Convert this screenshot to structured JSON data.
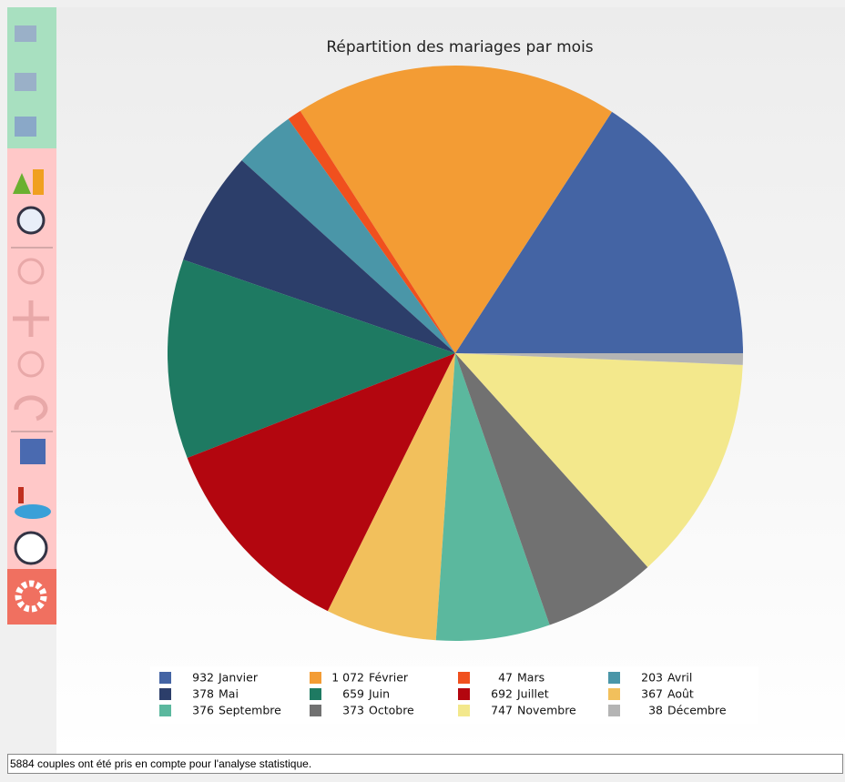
{
  "chart_data": {
    "type": "pie",
    "title": "Répartition des mariages par mois",
    "categories": [
      "Janvier",
      "Février",
      "Mars",
      "Avril",
      "Mai",
      "Juin",
      "Juillet",
      "Août",
      "Septembre",
      "Octobre",
      "Novembre",
      "Décembre"
    ],
    "values": [
      932,
      1072,
      47,
      203,
      378,
      659,
      692,
      367,
      376,
      373,
      747,
      38
    ],
    "value_labels": [
      "932",
      "1 072",
      "47",
      "203",
      "378",
      "659",
      "692",
      "367",
      "376",
      "373",
      "747",
      "38"
    ],
    "colors": [
      "#4464a4",
      "#f39c34",
      "#f0501e",
      "#4a96a8",
      "#2c3e6a",
      "#1e7a62",
      "#b3060f",
      "#f2c05c",
      "#5bb89e",
      "#717171",
      "#f3e88c",
      "#b4b4b4"
    ],
    "start_angle": 0,
    "direction": "counterclockwise",
    "legend": "bottom"
  },
  "status_bar": {
    "text": "5884 couples ont été pris en compte pour l'analyse statistique."
  }
}
